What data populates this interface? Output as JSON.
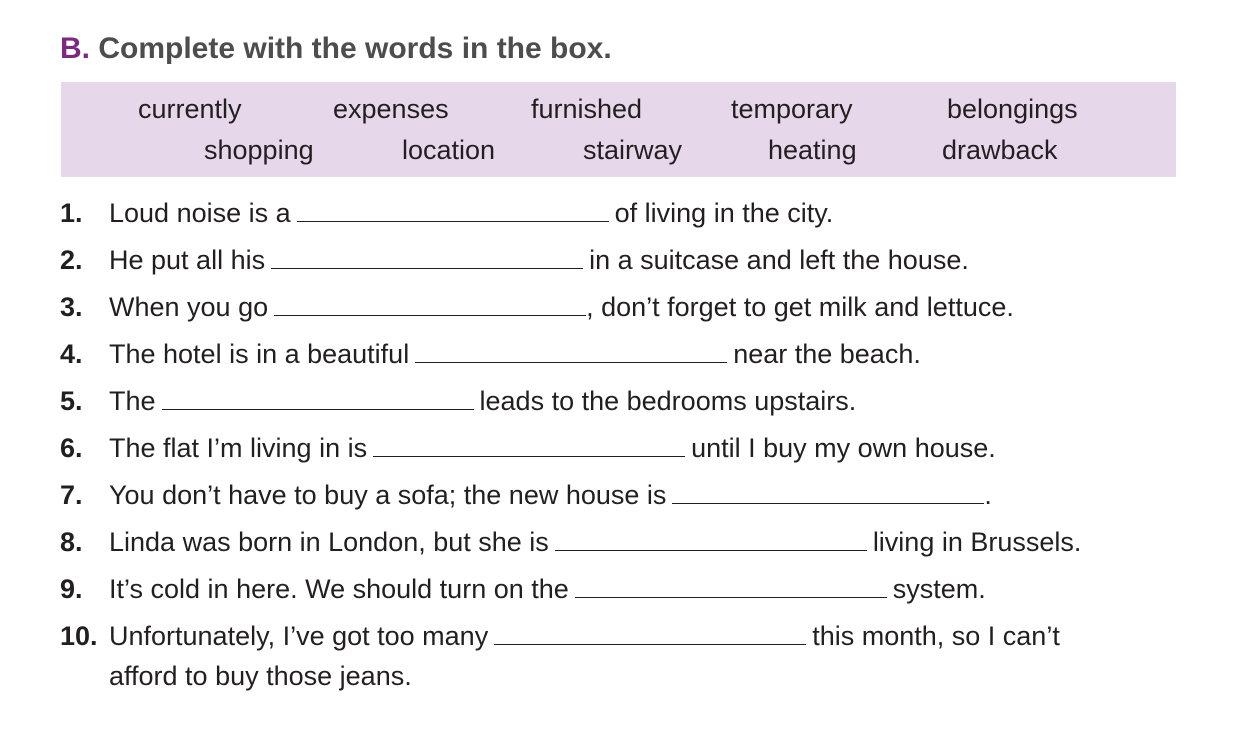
{
  "exercise": {
    "letter": "B.",
    "instruction": "Complete with the words in the box."
  },
  "word_box": {
    "row1": [
      "currently",
      "expenses",
      "furnished",
      "temporary",
      "belongings"
    ],
    "row2": [
      "shopping",
      "location",
      "stairway",
      "heating",
      "drawback"
    ]
  },
  "items": [
    {
      "num": "1.",
      "before": "Loud noise is a",
      "after": "of living in the city."
    },
    {
      "num": "2.",
      "before": "He put all his",
      "after": "in a suitcase and left the house."
    },
    {
      "num": "3.",
      "before": "When you go",
      "after": ", don’t forget to get milk and lettuce."
    },
    {
      "num": "4.",
      "before": "The hotel is in a beautiful",
      "after": "near the beach."
    },
    {
      "num": "5.",
      "before": "The",
      "after": "leads to the bedrooms upstairs."
    },
    {
      "num": "6.",
      "before": "The flat I’m living in is",
      "after": "until I buy my own house."
    },
    {
      "num": "7.",
      "before": "You don’t have to buy a sofa; the new house is",
      "after": "."
    },
    {
      "num": "8.",
      "before": "Linda was born in London, but she is",
      "after": "living in Brussels."
    },
    {
      "num": "9.",
      "before": "It’s cold in here. We should turn on the",
      "after": "system."
    },
    {
      "num": "10.",
      "before": "Unfortunately, I’ve got too many",
      "after": "this month, so I can’t",
      "continuation": "afford to buy those jeans."
    }
  ]
}
